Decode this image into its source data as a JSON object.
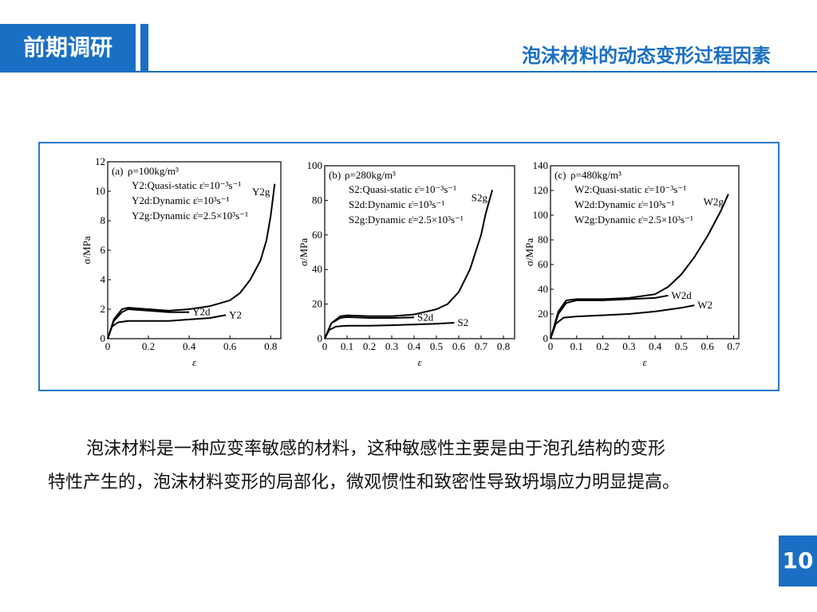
{
  "header": {
    "section": "前期调研",
    "title": "泡沫材料的动态变形过程因素"
  },
  "chart_data": [
    {
      "type": "line",
      "panel": "(a)",
      "density": "ρ=100kg/m³",
      "annotations": [
        "Y2:Quasi-static ε̇=10⁻³s⁻¹",
        "Y2d:Dynamic ε̇=10³s⁻¹",
        "Y2g:Dynamic ε̇=2.5×10³s⁻¹"
      ],
      "xlabel": "ε",
      "ylabel": "σ/MPa",
      "xlim": [
        0,
        0.85
      ],
      "xticks": [
        0,
        0.2,
        0.4,
        0.6,
        0.8
      ],
      "ylim": [
        0,
        12
      ],
      "yticks": [
        0,
        2,
        4,
        6,
        8,
        10,
        12
      ],
      "series": [
        {
          "name": "Y2",
          "color": "#000000",
          "x": [
            0,
            0.02,
            0.05,
            0.1,
            0.2,
            0.3,
            0.4,
            0.5,
            0.58
          ],
          "values": [
            0,
            0.8,
            1.1,
            1.2,
            1.2,
            1.2,
            1.3,
            1.4,
            1.6
          ]
        },
        {
          "name": "Y2d",
          "color": "#000000",
          "x": [
            0,
            0.03,
            0.07,
            0.1,
            0.2,
            0.3,
            0.4
          ],
          "values": [
            0,
            1.2,
            1.8,
            2.0,
            1.9,
            1.8,
            1.8
          ]
        },
        {
          "name": "Y2g",
          "color": "#000000",
          "x": [
            0,
            0.03,
            0.07,
            0.1,
            0.2,
            0.3,
            0.4,
            0.5,
            0.6,
            0.65,
            0.7,
            0.75,
            0.78,
            0.8,
            0.82
          ],
          "values": [
            0,
            1.3,
            2.0,
            2.1,
            2.0,
            1.9,
            2.0,
            2.2,
            2.6,
            3.1,
            4.0,
            5.3,
            6.7,
            8.3,
            10.5
          ]
        }
      ]
    },
    {
      "type": "line",
      "panel": "(b)",
      "density": "ρ=280kg/m³",
      "annotations": [
        "S2:Quasi-static ε̇=10⁻³s⁻¹",
        "S2d:Dynamic ε̇=10³s⁻¹",
        "S2g:Dynamic ε̇=2.5×10³s⁻¹"
      ],
      "xlabel": "ε",
      "ylabel": "σ/MPa",
      "xlim": [
        0,
        0.85
      ],
      "xticks": [
        0,
        0.1,
        0.2,
        0.3,
        0.4,
        0.5,
        0.6,
        0.7,
        0.8
      ],
      "ylim": [
        0,
        100
      ],
      "yticks": [
        0,
        20,
        40,
        60,
        80,
        100
      ],
      "series": [
        {
          "name": "S2",
          "color": "#000000",
          "x": [
            0,
            0.02,
            0.05,
            0.1,
            0.2,
            0.3,
            0.4,
            0.5,
            0.58
          ],
          "values": [
            0,
            5,
            7,
            7.5,
            7.5,
            7.8,
            8.2,
            8.6,
            9.2
          ]
        },
        {
          "name": "S2d",
          "color": "#000000",
          "x": [
            0,
            0.03,
            0.07,
            0.1,
            0.2,
            0.3,
            0.4
          ],
          "values": [
            0,
            9,
            12,
            12.5,
            12,
            12,
            12.3
          ]
        },
        {
          "name": "S2g",
          "color": "#000000",
          "x": [
            0,
            0.03,
            0.07,
            0.1,
            0.2,
            0.3,
            0.4,
            0.5,
            0.55,
            0.6,
            0.65,
            0.7,
            0.72,
            0.75
          ],
          "values": [
            0,
            9,
            13,
            13.5,
            13,
            13,
            14,
            17,
            20,
            27,
            40,
            60,
            72,
            86
          ]
        }
      ]
    },
    {
      "type": "line",
      "panel": "(c)",
      "density": "ρ=480kg/m³",
      "annotations": [
        "W2:Quasi-static ε̇=10⁻³s⁻¹",
        "W2d:Dynamic ε̇=10³s⁻¹",
        "W2g:Dynamic ε̇=2.5×10³s⁻¹"
      ],
      "xlabel": "ε",
      "ylabel": "σ/MPa",
      "xlim": [
        0,
        0.72
      ],
      "xticks": [
        0,
        0.1,
        0.2,
        0.3,
        0.4,
        0.5,
        0.6,
        0.7
      ],
      "ylim": [
        0,
        140
      ],
      "yticks": [
        0,
        20,
        40,
        60,
        80,
        100,
        120,
        140
      ],
      "series": [
        {
          "name": "W2",
          "color": "#000000",
          "x": [
            0,
            0.02,
            0.05,
            0.1,
            0.2,
            0.3,
            0.4,
            0.5,
            0.55
          ],
          "values": [
            0,
            12,
            17,
            18,
            19,
            20,
            22,
            25,
            27
          ]
        },
        {
          "name": "W2d",
          "color": "#000000",
          "x": [
            0,
            0.03,
            0.06,
            0.1,
            0.2,
            0.3,
            0.4,
            0.45
          ],
          "values": [
            0,
            20,
            29,
            31,
            31,
            32,
            33,
            35
          ]
        },
        {
          "name": "W2g",
          "color": "#000000",
          "x": [
            0,
            0.03,
            0.06,
            0.1,
            0.2,
            0.3,
            0.4,
            0.45,
            0.5,
            0.55,
            0.6,
            0.65,
            0.68
          ],
          "values": [
            0,
            22,
            31,
            32,
            32,
            33,
            36,
            42,
            52,
            66,
            83,
            103,
            117
          ]
        }
      ]
    }
  ],
  "body": [
    "泡沫材料是一种应变率敏感的材料，这种敏感性主要是由于泡孔结构的变形",
    "特性产生的，泡沫材料变形的局部化，微观惯性和致密性导致坍塌应力明显提高。"
  ],
  "page_number": "10"
}
